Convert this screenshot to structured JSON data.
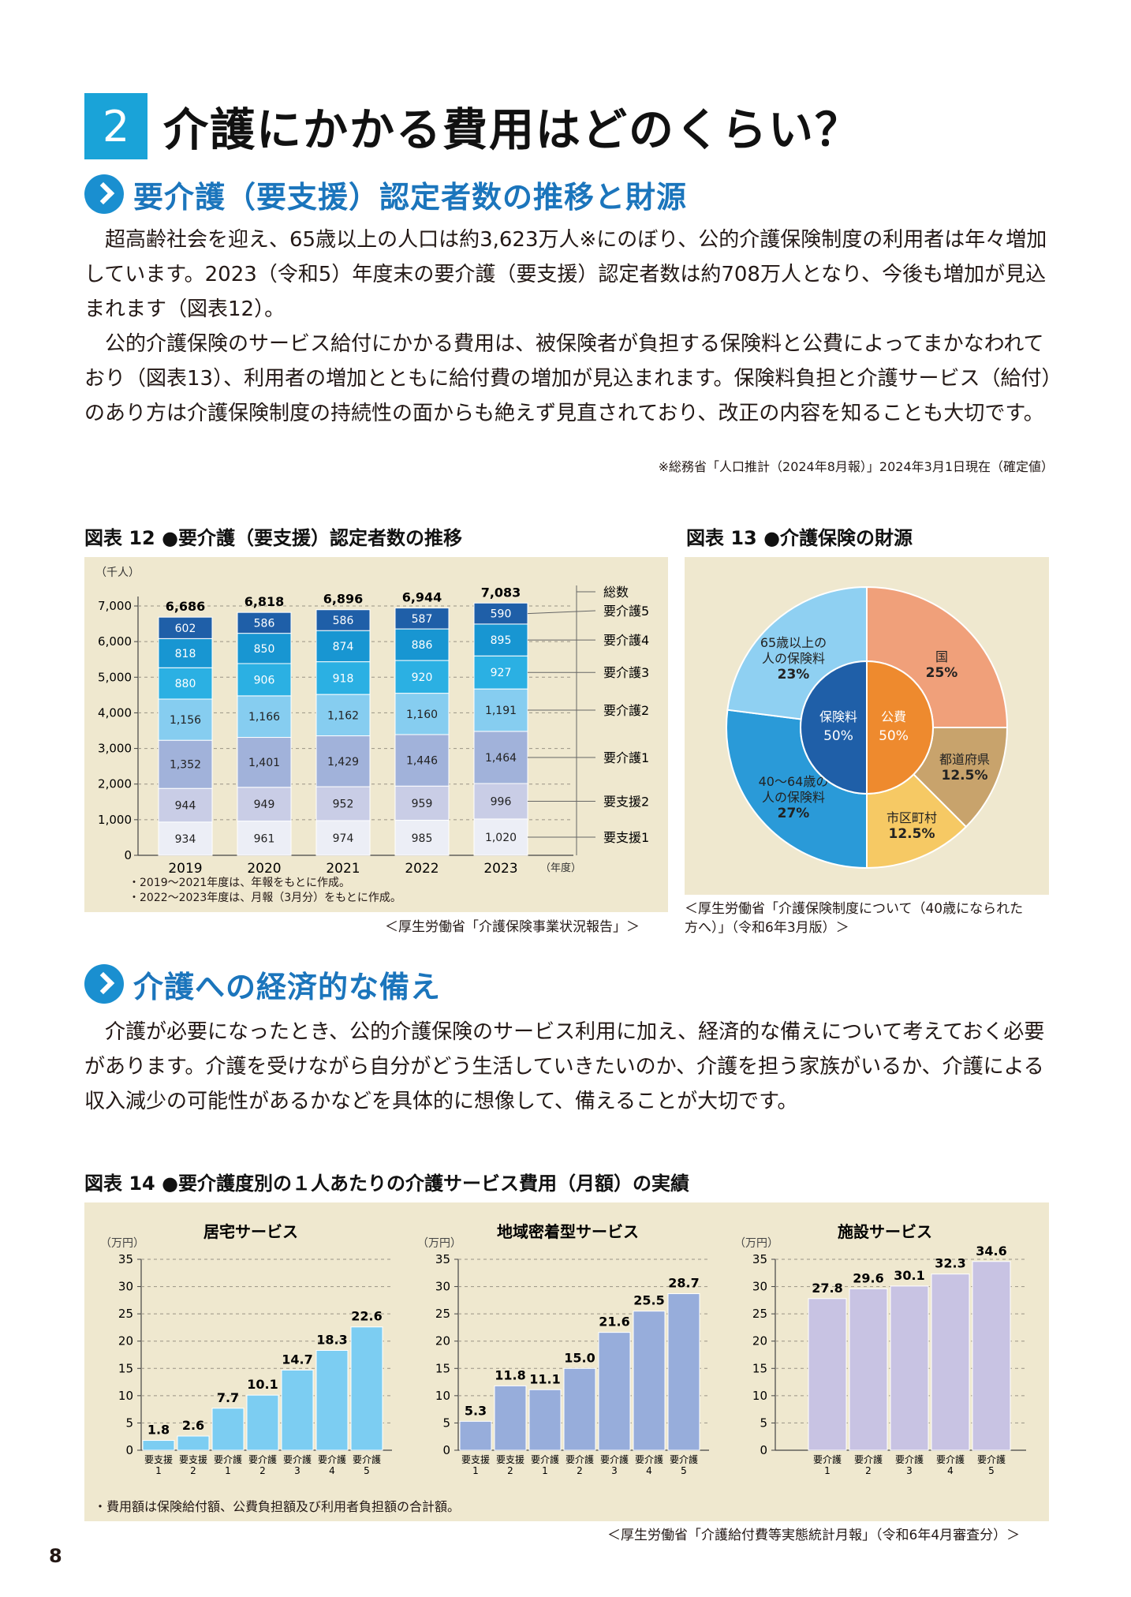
{
  "section": {
    "number": "2",
    "title": "介護にかかる費用はどのくらい？"
  },
  "sub1": {
    "title": "要介護（要支援）認定者数の推移と財源",
    "para1": "超高齢社会を迎え、65歳以上の人口は約3,623万人※にのぼり、公的介護保険制度の利用者は年々増加しています。2023（令和5）年度末の要介護（要支援）認定者数は約708万人となり、今後も増加が見込まれます（図表12）。",
    "para2": "公的介護保険のサービス給付にかかる費用は、被保険者が負担する保険料と公費によってまかなわれており（図表13）、利用者の増加とともに給付費の増加が見込まれます。保険料負担と介護サービス（給付）のあり方は介護保険制度の持続性の面からも絶えず見直されており、改正の内容を知ることも大切です。",
    "note": "※総務省「人口推計（2024年8月報）」2024年3月1日現在（確定値）"
  },
  "fig12": {
    "title": "図表 12 ●要介護（要支援）認定者数の推移",
    "notes": [
      "・2019～2021年度は、年報をもとに作成。",
      "・2022～2023年度は、月報（3月分）をもとに作成。"
    ],
    "source": "＜厚生労働省「介護保険事業状況報告」＞"
  },
  "fig13": {
    "title": "図表 13 ●介護保険の財源",
    "source_line1": "＜厚生労働省「介護保険制度について（40歳になられた",
    "source_line2": "方へ）」（令和6年3月版）＞"
  },
  "sub2": {
    "title": "介護への経済的な備え",
    "para": "介護が必要になったとき、公的介護保険のサービス利用に加え、経済的な備えについて考えておく必要があります。介護を受けながら自分がどう生活していきたいのか、介護を担う家族がいるか、介護による収入減少の可能性があるかなどを具体的に想像して、備えることが大切です。"
  },
  "fig14": {
    "title": "図表 14 ●要介護度別の１人あたりの介護サービス費用（月額）の実績",
    "note": "・費用額は保険給付額、公費負担額及び利用者負担額の合計額。",
    "source": "＜厚生労働省「介護給付費等実態統計月報」（令和6年4月審査分）＞"
  },
  "page_number": "8",
  "chart_data": [
    {
      "type": "bar",
      "stacked": true,
      "unit": "（千人）",
      "x_suffix": "（年度）",
      "categories": [
        "2019",
        "2020",
        "2021",
        "2022",
        "2023"
      ],
      "ylim": [
        0,
        7000
      ],
      "yticks": [
        "0",
        "1,000",
        "2,000",
        "3,000",
        "4,000",
        "5,000",
        "6,000",
        "7,000"
      ],
      "totals_label": "総数",
      "totals": [
        "6,686",
        "6,818",
        "6,896",
        "6,944",
        "7,083"
      ],
      "series": [
        {
          "name": "要支援1",
          "values": [
            934,
            961,
            974,
            985,
            1020
          ],
          "labels": [
            "934",
            "961",
            "974",
            "985",
            "1,020"
          ],
          "color": "#eceef6",
          "text": "#222"
        },
        {
          "name": "要支援2",
          "values": [
            944,
            949,
            952,
            959,
            996
          ],
          "labels": [
            "944",
            "949",
            "952",
            "959",
            "996"
          ],
          "color": "#c9cde6",
          "text": "#222"
        },
        {
          "name": "要介護1",
          "values": [
            1352,
            1401,
            1429,
            1446,
            1464
          ],
          "labels": [
            "1,352",
            "1,401",
            "1,429",
            "1,446",
            "1,464"
          ],
          "color": "#a1b2da",
          "text": "#222"
        },
        {
          "name": "要介護2",
          "values": [
            1156,
            1166,
            1162,
            1160,
            1191
          ],
          "labels": [
            "1,156",
            "1,166",
            "1,162",
            "1,160",
            "1,191"
          ],
          "color": "#86cdf0",
          "text": "#222"
        },
        {
          "name": "要介護3",
          "values": [
            880,
            906,
            918,
            920,
            927
          ],
          "labels": [
            "880",
            "906",
            "918",
            "920",
            "927"
          ],
          "color": "#2bb0e3",
          "text": "#fff"
        },
        {
          "name": "要介護4",
          "values": [
            818,
            850,
            874,
            886,
            895
          ],
          "labels": [
            "818",
            "850",
            "874",
            "886",
            "895"
          ],
          "color": "#1896d2",
          "text": "#fff"
        },
        {
          "name": "要介護5",
          "values": [
            602,
            586,
            586,
            587,
            590
          ],
          "labels": [
            "602",
            "586",
            "586",
            "587",
            "590"
          ],
          "color": "#1f5fa8",
          "text": "#fff"
        }
      ]
    },
    {
      "type": "pie",
      "inner": [
        {
          "name": "保険料",
          "value": 50,
          "label": "50%",
          "color": "#1f5fa8"
        },
        {
          "name": "公費",
          "value": 50,
          "label": "50%",
          "color": "#ee8a2e"
        }
      ],
      "outer": [
        {
          "name": "国",
          "value": 25,
          "label": "25%",
          "color": "#f0a07a"
        },
        {
          "name": "都道府県",
          "value": 12.5,
          "label": "12.5%",
          "color": "#c8a36c"
        },
        {
          "name": "市区町村",
          "value": 12.5,
          "label": "12.5%",
          "color": "#f6c964"
        },
        {
          "name": "40～64歳の人の保険料",
          "name_lines": [
            "40～64歳の",
            "人の保険料"
          ],
          "value": 27,
          "label": "27%",
          "color": "#2a9ad8"
        },
        {
          "name": "65歳以上の人の保険料",
          "name_lines": [
            "65歳以上の",
            "人の保険料"
          ],
          "value": 23,
          "label": "23%",
          "color": "#8fd0f2"
        }
      ]
    },
    {
      "type": "bar",
      "title": "居宅サービス",
      "unit": "（万円）",
      "ylim": [
        0,
        35
      ],
      "yticks": [
        "0",
        "5",
        "10",
        "15",
        "20",
        "25",
        "30",
        "35"
      ],
      "categories": [
        [
          "要支援",
          "1"
        ],
        [
          "要支援",
          "2"
        ],
        [
          "要介護",
          "1"
        ],
        [
          "要介護",
          "2"
        ],
        [
          "要介護",
          "3"
        ],
        [
          "要介護",
          "4"
        ],
        [
          "要介護",
          "5"
        ]
      ],
      "values": [
        1.8,
        2.6,
        7.7,
        10.1,
        14.7,
        18.3,
        22.6
      ],
      "labels": [
        "1.8",
        "2.6",
        "7.7",
        "10.1",
        "14.7",
        "18.3",
        "22.6"
      ],
      "color": "#7ccdf2"
    },
    {
      "type": "bar",
      "title": "地域密着型サービス",
      "unit": "（万円）",
      "ylim": [
        0,
        35
      ],
      "yticks": [
        "0",
        "5",
        "10",
        "15",
        "20",
        "25",
        "30",
        "35"
      ],
      "categories": [
        [
          "要支援",
          "1"
        ],
        [
          "要支援",
          "2"
        ],
        [
          "要介護",
          "1"
        ],
        [
          "要介護",
          "2"
        ],
        [
          "要介護",
          "3"
        ],
        [
          "要介護",
          "4"
        ],
        [
          "要介護",
          "5"
        ]
      ],
      "values": [
        5.3,
        11.8,
        11.1,
        15.0,
        21.6,
        25.5,
        28.7
      ],
      "labels": [
        "5.3",
        "11.8",
        "11.1",
        "15.0",
        "21.6",
        "25.5",
        "28.7"
      ],
      "color": "#97addb"
    },
    {
      "type": "bar",
      "title": "施設サービス",
      "unit": "（万円）",
      "ylim": [
        0,
        35
      ],
      "yticks": [
        "0",
        "5",
        "10",
        "15",
        "20",
        "25",
        "30",
        "35"
      ],
      "categories": [
        [
          "要介護",
          "1"
        ],
        [
          "要介護",
          "2"
        ],
        [
          "要介護",
          "3"
        ],
        [
          "要介護",
          "4"
        ],
        [
          "要介護",
          "5"
        ]
      ],
      "values": [
        27.8,
        29.6,
        30.1,
        32.3,
        34.6
      ],
      "labels": [
        "27.8",
        "29.6",
        "30.1",
        "32.3",
        "34.6"
      ],
      "color": "#c8c3e3"
    }
  ]
}
